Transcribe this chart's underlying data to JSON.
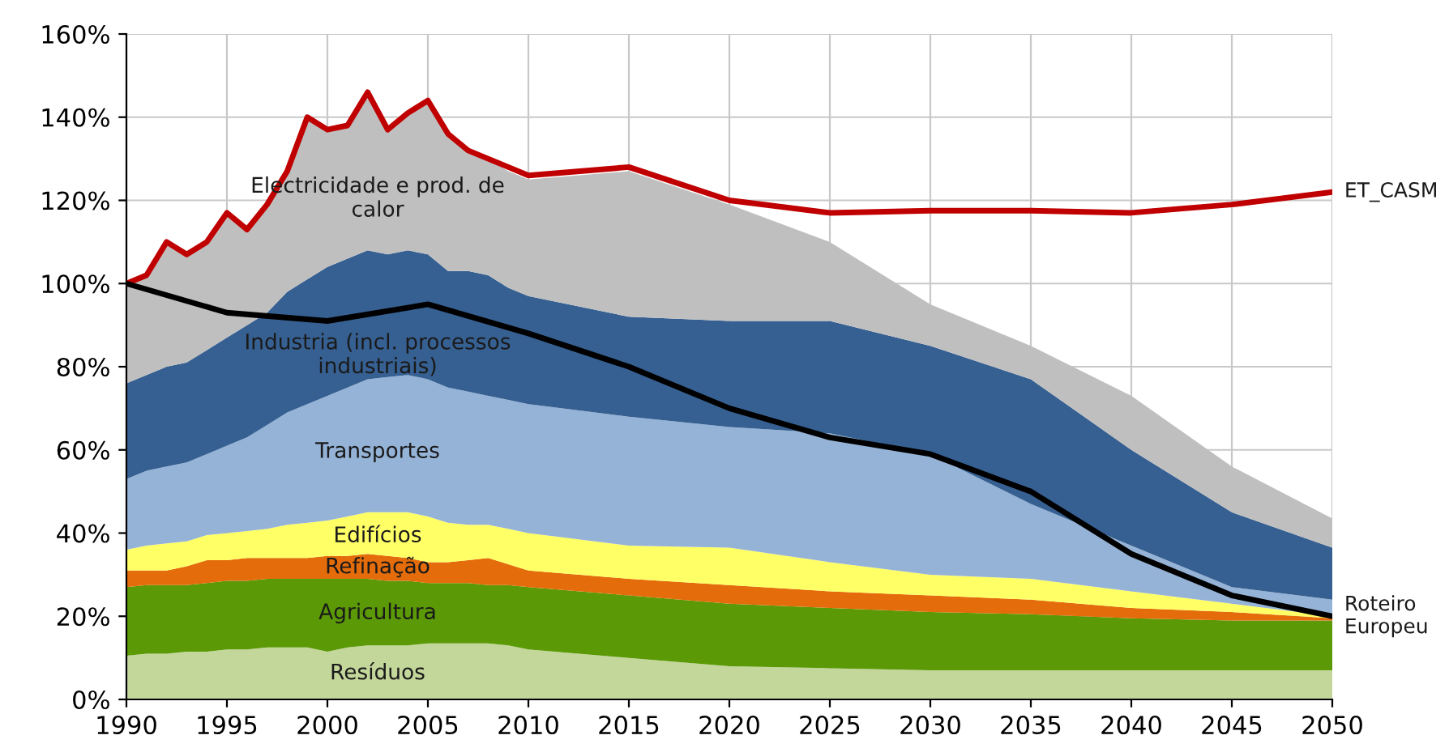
{
  "chart_data": {
    "type": "area",
    "stacked": true,
    "x": [
      1990,
      1991,
      1992,
      1993,
      1994,
      1995,
      1996,
      1997,
      1998,
      1999,
      2000,
      2001,
      2002,
      2003,
      2004,
      2005,
      2006,
      2007,
      2008,
      2009,
      2010,
      2015,
      2020,
      2025,
      2030,
      2035,
      2040,
      2045,
      2050
    ],
    "series": [
      {
        "name": "Resíduos",
        "color": "#c4d79b",
        "values": [
          10.5,
          11,
          11,
          11.5,
          11.5,
          12,
          12,
          12.5,
          12.5,
          12.5,
          11.5,
          12.5,
          13,
          13,
          13,
          13.5,
          13.5,
          13.5,
          13.5,
          13,
          12,
          10,
          8,
          7.5,
          7,
          7,
          7,
          7,
          7
        ]
      },
      {
        "name": "Agricultura",
        "color": "#5b9a06",
        "values": [
          16.5,
          16.5,
          16.5,
          16,
          16.5,
          16.5,
          16.5,
          16.5,
          16.5,
          16.5,
          17.5,
          16.5,
          16,
          15.5,
          15.5,
          14.5,
          14.5,
          14.5,
          14,
          14.5,
          15,
          15,
          15,
          14.5,
          14,
          13.5,
          12.5,
          12,
          12
        ]
      },
      {
        "name": "Refinação",
        "color": "#e46c0a",
        "values": [
          4,
          3.5,
          3.5,
          4.5,
          5.5,
          5,
          5.5,
          5,
          5,
          5,
          5.5,
          5.5,
          6,
          6,
          5.5,
          5,
          5,
          5.5,
          6.5,
          5,
          4,
          4,
          4.5,
          4,
          4,
          3.5,
          2.5,
          2,
          0.5
        ]
      },
      {
        "name": "Edifícios",
        "color": "#ffff66",
        "values": [
          5,
          6,
          6.5,
          6,
          6,
          6.5,
          6.5,
          7,
          8,
          8.5,
          8.5,
          9.5,
          10,
          10.5,
          11,
          11,
          9.5,
          8.5,
          8,
          8.5,
          9,
          8,
          9,
          7,
          5,
          5,
          4,
          2,
          0.5
        ]
      },
      {
        "name": "Transportes",
        "color": "#95b3d7",
        "values": [
          17,
          18,
          18.5,
          19,
          19.5,
          21,
          22.5,
          25,
          27,
          28.5,
          30,
          31,
          32,
          32.5,
          33,
          33,
          32.5,
          32,
          31,
          31,
          31,
          31,
          29,
          31,
          29,
          18,
          11,
          4,
          4
        ]
      },
      {
        "name": "Industria (incl. processos\nindustriais)",
        "color": "#366092",
        "values": [
          23,
          23,
          24,
          24,
          25,
          26,
          27,
          27,
          29,
          30,
          31,
          31,
          31,
          29.5,
          30,
          30,
          28,
          29,
          29,
          27,
          26,
          24,
          25.5,
          27,
          26,
          30,
          23,
          18,
          12.5
        ]
      },
      {
        "name": "Electricidade e prod. de\ncalor",
        "color": "#bfbfbf",
        "values": [
          24,
          24,
          30,
          26,
          26,
          30,
          23,
          26,
          29,
          39,
          33,
          32,
          38,
          30,
          33,
          37,
          33,
          29,
          28,
          28,
          28,
          35,
          28,
          19,
          10,
          8,
          13,
          11,
          7
        ]
      },
      {
        "name": "ET_CASM",
        "type": "line",
        "color": "#c00000",
        "x": [
          1990,
          1991,
          1992,
          1993,
          1994,
          1995,
          1996,
          1997,
          1998,
          1999,
          2000,
          2001,
          2002,
          2003,
          2004,
          2005,
          2006,
          2007,
          2008,
          2009,
          2010,
          2015,
          2020,
          2025,
          2030,
          2035,
          2040,
          2045,
          2050
        ],
        "values": [
          100,
          102,
          110,
          107,
          110,
          117,
          113,
          119,
          127,
          140,
          137,
          138,
          146,
          137,
          141,
          144,
          136,
          132,
          130,
          128,
          126,
          128,
          120,
          117,
          117.5,
          117.5,
          117,
          119,
          122
        ]
      },
      {
        "name": "Roteiro\nEuropeu",
        "type": "line",
        "color": "#000000",
        "x": [
          1990,
          1995,
          2000,
          2005,
          2010,
          2015,
          2020,
          2025,
          2030,
          2035,
          2040,
          2045,
          2050
        ],
        "values": [
          100,
          93,
          91,
          95,
          88,
          80,
          70,
          63,
          59,
          50,
          35,
          25,
          20
        ]
      }
    ],
    "xlim": [
      1990,
      2050
    ],
    "xticks": [
      1990,
      1995,
      2000,
      2005,
      2010,
      2015,
      2020,
      2025,
      2030,
      2035,
      2040,
      2045,
      2050
    ],
    "ylim": [
      0,
      160
    ],
    "yticks": [
      {
        "value": 0,
        "label": "0%"
      },
      {
        "value": 20,
        "label": "20%"
      },
      {
        "value": 40,
        "label": "40%"
      },
      {
        "value": 60,
        "label": "60%"
      },
      {
        "value": 80,
        "label": "80%"
      },
      {
        "value": 100,
        "label": "100%"
      },
      {
        "value": 120,
        "label": "120%"
      },
      {
        "value": 140,
        "label": "140%"
      },
      {
        "value": 160,
        "label": "160%"
      }
    ],
    "grid": true,
    "legend": false
  }
}
